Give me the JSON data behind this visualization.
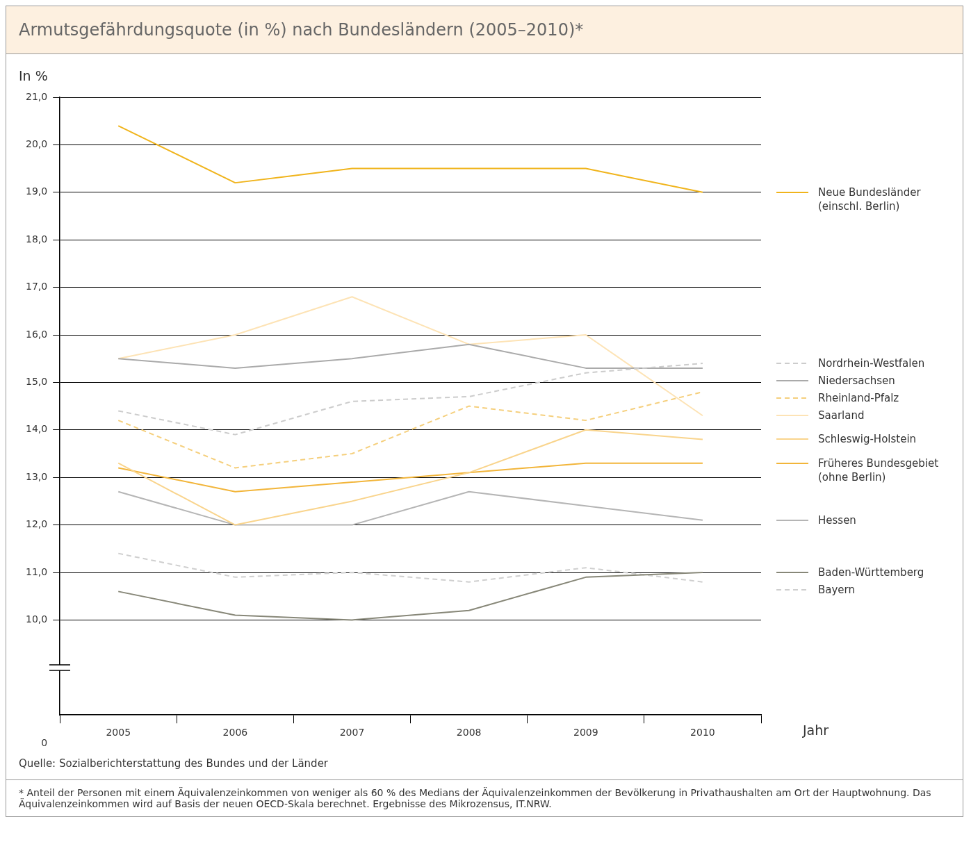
{
  "chart_data": {
    "type": "line",
    "title": "Armutsgefährdungsquote (in %) nach Bundesländern (2005–2010)*",
    "ylabel": "In %",
    "xlabel": "Jahr",
    "categories": [
      "2005",
      "2006",
      "2007",
      "2008",
      "2009",
      "2010"
    ],
    "ylim": [
      8,
      21
    ],
    "yticks": [
      {
        "value": 10,
        "label": "10,0"
      },
      {
        "value": 11,
        "label": "11,0"
      },
      {
        "value": 12,
        "label": "12,0"
      },
      {
        "value": 13,
        "label": "13,0"
      },
      {
        "value": 14,
        "label": "14,0"
      },
      {
        "value": 15,
        "label": "15,0"
      },
      {
        "value": 16,
        "label": "16,0"
      },
      {
        "value": 17,
        "label": "17,0"
      },
      {
        "value": 18,
        "label": "18,0"
      },
      {
        "value": 19,
        "label": "19,0"
      },
      {
        "value": 20,
        "label": "20,0"
      },
      {
        "value": 21,
        "label": "21,0"
      }
    ],
    "grid": "y",
    "legend": "right",
    "marker": "none",
    "series": [
      {
        "name": "Neue Bundesländer (einschl. Berlin)",
        "color": "#f0b41c",
        "values": [
          20.4,
          19.2,
          19.5,
          19.5,
          19.5,
          19.0
        ]
      },
      {
        "name": "Nordrhein-Westfalen",
        "color": "#cccccc",
        "line_style": "dashed",
        "values": [
          14.4,
          13.9,
          14.6,
          14.7,
          15.2,
          15.4
        ]
      },
      {
        "name": "Niedersachsen",
        "color": "#aaaaaa",
        "values": [
          15.5,
          15.3,
          15.5,
          15.8,
          15.3,
          15.3
        ]
      },
      {
        "name": "Rheinland-Pfalz",
        "color": "#f5cf7c",
        "line_style": "dashed",
        "values": [
          14.2,
          13.2,
          13.5,
          14.5,
          14.2,
          14.8
        ]
      },
      {
        "name": "Saarland",
        "color": "#fde3b5",
        "values": [
          15.5,
          16.0,
          16.8,
          15.8,
          16.0,
          14.3
        ]
      },
      {
        "name": "Schleswig-Holstein",
        "color": "#f9d48c",
        "values": [
          13.3,
          12.0,
          12.5,
          13.1,
          14.0,
          13.8
        ]
      },
      {
        "name": "Früheres Bundesgebiet (ohne Berlin)",
        "color": "#f2b53a",
        "values": [
          13.2,
          12.7,
          12.9,
          13.1,
          13.3,
          13.3
        ]
      },
      {
        "name": "Hessen",
        "color": "#b5b5b5",
        "values": [
          12.7,
          12.0,
          12.0,
          12.7,
          12.4,
          12.1
        ]
      },
      {
        "name": "Baden-Württemberg",
        "color": "#878778",
        "values": [
          10.6,
          10.1,
          10.0,
          10.2,
          10.9,
          11.0
        ]
      },
      {
        "name": "Bayern",
        "color": "#cfcfcf",
        "line_style": "dashed",
        "values": [
          11.4,
          10.9,
          11.0,
          10.8,
          11.1,
          10.8
        ]
      }
    ],
    "annotations": [
      "0",
      "Quelle: Sozialberichterstattung des Bundes und der Länder",
      "* Anteil der Personen mit einem Äquivalenzeinkommen von weniger als 60 % des Medians der Äquivalenzeinkommen der Bevölkerung in Privathaushalten am Ort der Hauptwohnung. Das Äquivalenzeinkommen wird auf Basis der neuen OECD-Skala berechnet. Ergebnisse des Mikrozensus, IT.NRW."
    ]
  }
}
